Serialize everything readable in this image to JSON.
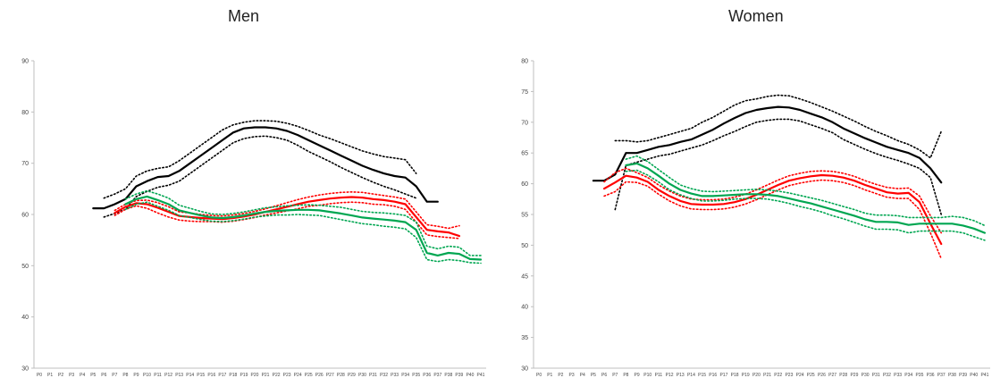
{
  "chart_data": [
    {
      "type": "line",
      "title": "Men",
      "xlabel": "",
      "ylabel": "",
      "ylim": [
        30,
        90
      ],
      "yticks": [
        30,
        40,
        50,
        60,
        70,
        80,
        90
      ],
      "categories": [
        "P0",
        "P1",
        "P2",
        "P3",
        "P4",
        "P5",
        "P6",
        "P7",
        "P8",
        "P9",
        "P10",
        "P11",
        "P12",
        "P13",
        "P14",
        "P15",
        "P16",
        "P17",
        "P18",
        "P19",
        "P20",
        "P21",
        "P22",
        "P23",
        "P24",
        "P25",
        "P26",
        "P27",
        "P28",
        "P29",
        "P30",
        "P31",
        "P32",
        "P33",
        "P34",
        "P35",
        "P36",
        "P37",
        "P38",
        "P39",
        "P40",
        "P41"
      ],
      "series": [
        {
          "color": "#000000",
          "style": "solid",
          "values": [
            null,
            null,
            null,
            null,
            null,
            61.2,
            61.2,
            62.0,
            63.0,
            65.5,
            66.5,
            67.3,
            67.5,
            68.5,
            70.0,
            71.5,
            73.0,
            74.5,
            76.0,
            76.8,
            77.0,
            77.0,
            76.8,
            76.3,
            75.5,
            74.5,
            73.5,
            72.5,
            71.5,
            70.5,
            69.5,
            68.7,
            68.0,
            67.5,
            67.2,
            65.5,
            62.5,
            62.5,
            null,
            null,
            null,
            null
          ]
        },
        {
          "color": "#000000",
          "style": "dotted",
          "values": [
            null,
            null,
            null,
            null,
            null,
            null,
            63.2,
            64.0,
            65.0,
            67.5,
            68.5,
            69.0,
            69.3,
            70.5,
            72.0,
            73.5,
            75.0,
            76.5,
            77.5,
            78.0,
            78.3,
            78.3,
            78.2,
            77.8,
            77.2,
            76.4,
            75.5,
            74.8,
            74.0,
            73.2,
            72.4,
            71.8,
            71.3,
            71.0,
            70.7,
            68.0,
            null,
            null,
            null,
            null,
            null,
            null
          ]
        },
        {
          "color": "#000000",
          "style": "dotted",
          "values": [
            null,
            null,
            null,
            null,
            null,
            null,
            59.5,
            60.2,
            61.0,
            63.5,
            64.5,
            65.3,
            65.7,
            66.5,
            68.0,
            69.5,
            71.0,
            72.5,
            74.0,
            74.8,
            75.2,
            75.3,
            75.0,
            74.5,
            73.5,
            72.3,
            71.3,
            70.3,
            69.2,
            68.2,
            67.2,
            66.3,
            65.5,
            64.8,
            64.0,
            63.2,
            null,
            null,
            null,
            null,
            null,
            null
          ]
        },
        {
          "color": "#ff0000",
          "style": "solid",
          "values": [
            null,
            null,
            null,
            null,
            null,
            null,
            null,
            60.3,
            61.5,
            62.2,
            62.0,
            61.3,
            60.5,
            59.7,
            59.5,
            59.3,
            59.2,
            59.1,
            59.3,
            59.6,
            60.0,
            60.5,
            61.0,
            61.5,
            62.0,
            62.5,
            62.8,
            63.1,
            63.3,
            63.4,
            63.3,
            63.0,
            62.8,
            62.5,
            62.0,
            59.5,
            57.0,
            56.7,
            56.5,
            55.8,
            null,
            null
          ]
        },
        {
          "color": "#ff0000",
          "style": "dotted",
          "values": [
            null,
            null,
            null,
            null,
            null,
            null,
            null,
            60.8,
            62.0,
            62.7,
            62.8,
            62.3,
            61.5,
            60.5,
            60.3,
            60.0,
            59.8,
            59.7,
            59.9,
            60.2,
            60.6,
            61.1,
            61.7,
            62.3,
            62.9,
            63.4,
            63.8,
            64.1,
            64.3,
            64.4,
            64.3,
            64.0,
            63.7,
            63.4,
            63.0,
            60.5,
            58.0,
            57.7,
            57.3,
            57.8,
            null,
            null
          ]
        },
        {
          "color": "#ff0000",
          "style": "dotted",
          "values": [
            null,
            null,
            null,
            null,
            null,
            null,
            null,
            59.8,
            61.0,
            61.7,
            61.2,
            60.3,
            59.5,
            58.9,
            58.7,
            58.6,
            58.6,
            58.5,
            58.7,
            59.0,
            59.4,
            59.9,
            60.3,
            60.7,
            61.1,
            61.6,
            61.8,
            62.1,
            62.3,
            62.4,
            62.3,
            62.0,
            61.9,
            61.6,
            61.0,
            58.5,
            56.0,
            55.7,
            55.5,
            55.3,
            null,
            null
          ]
        },
        {
          "color": "#00a651",
          "style": "solid",
          "values": [
            null,
            null,
            null,
            null,
            null,
            null,
            null,
            null,
            62.0,
            63.0,
            63.5,
            62.8,
            62.0,
            60.8,
            60.3,
            59.8,
            59.4,
            59.3,
            59.5,
            59.8,
            60.2,
            60.5,
            60.7,
            60.8,
            60.9,
            60.9,
            60.8,
            60.5,
            60.2,
            59.8,
            59.4,
            59.2,
            59.0,
            58.8,
            58.5,
            57.0,
            52.5,
            52.0,
            52.5,
            52.3,
            51.3,
            51.2
          ]
        },
        {
          "color": "#00a651",
          "style": "dotted",
          "values": [
            null,
            null,
            null,
            null,
            null,
            null,
            null,
            null,
            63.0,
            64.0,
            64.6,
            64.0,
            63.2,
            61.8,
            61.2,
            60.6,
            60.1,
            60.0,
            60.2,
            60.5,
            60.9,
            61.3,
            61.5,
            61.7,
            61.8,
            61.9,
            61.8,
            61.6,
            61.4,
            61.0,
            60.6,
            60.4,
            60.3,
            60.1,
            59.8,
            58.5,
            53.8,
            53.3,
            53.8,
            53.6,
            52.0,
            52.0
          ]
        },
        {
          "color": "#00a651",
          "style": "dotted",
          "values": [
            null,
            null,
            null,
            null,
            null,
            null,
            null,
            null,
            61.0,
            62.0,
            62.4,
            61.6,
            60.8,
            59.8,
            59.4,
            59.0,
            58.7,
            58.6,
            58.8,
            59.1,
            59.5,
            59.7,
            59.9,
            59.9,
            60.0,
            59.9,
            59.8,
            59.4,
            59.0,
            58.6,
            58.2,
            58.0,
            57.7,
            57.5,
            57.2,
            55.5,
            51.2,
            50.8,
            51.2,
            51.0,
            50.6,
            50.5
          ]
        }
      ]
    },
    {
      "type": "line",
      "title": "Women",
      "xlabel": "",
      "ylabel": "",
      "ylim": [
        30,
        80
      ],
      "yticks": [
        30,
        35,
        40,
        45,
        50,
        55,
        60,
        65,
        70,
        75,
        80
      ],
      "categories": [
        "P0",
        "P1",
        "P2",
        "P3",
        "P4",
        "P5",
        "P6",
        "P7",
        "P8",
        "P9",
        "P10",
        "P11",
        "P12",
        "P13",
        "P14",
        "P15",
        "P16",
        "P17",
        "P18",
        "P19",
        "P20",
        "P21",
        "P22",
        "P23",
        "P24",
        "P25",
        "P26",
        "P27",
        "P28",
        "P29",
        "P30",
        "P31",
        "P32",
        "P33",
        "P34",
        "P35",
        "P36",
        "P37",
        "P38",
        "P39",
        "P40",
        "P41"
      ],
      "series": [
        {
          "color": "#000000",
          "style": "solid",
          "values": [
            null,
            null,
            null,
            null,
            null,
            60.5,
            60.5,
            61.5,
            65.0,
            65.0,
            65.5,
            66.0,
            66.3,
            66.8,
            67.2,
            68.0,
            68.8,
            69.8,
            70.7,
            71.5,
            72.0,
            72.3,
            72.5,
            72.4,
            72.0,
            71.4,
            70.8,
            70.0,
            69.0,
            68.2,
            67.4,
            66.7,
            66.0,
            65.5,
            65.0,
            64.2,
            62.5,
            60.2,
            null,
            null,
            null,
            null
          ]
        },
        {
          "color": "#000000",
          "style": "dotted",
          "values": [
            null,
            null,
            null,
            null,
            null,
            null,
            null,
            67.0,
            67.0,
            66.8,
            67.0,
            67.5,
            68.0,
            68.5,
            69.0,
            70.0,
            70.8,
            71.8,
            72.8,
            73.5,
            73.8,
            74.2,
            74.4,
            74.3,
            73.8,
            73.2,
            72.5,
            71.8,
            71.0,
            70.2,
            69.3,
            68.5,
            67.8,
            67.0,
            66.4,
            65.5,
            64.2,
            68.5,
            null,
            null,
            null,
            null
          ]
        },
        {
          "color": "#000000",
          "style": "dotted",
          "values": [
            null,
            null,
            null,
            null,
            null,
            null,
            null,
            55.8,
            63.0,
            63.5,
            64.0,
            64.5,
            64.8,
            65.3,
            65.8,
            66.3,
            67.0,
            67.8,
            68.5,
            69.3,
            70.0,
            70.3,
            70.5,
            70.5,
            70.2,
            69.6,
            69.0,
            68.3,
            67.2,
            66.4,
            65.6,
            64.9,
            64.3,
            63.8,
            63.2,
            62.5,
            61.0,
            55.0,
            null,
            null,
            null,
            null
          ]
        },
        {
          "color": "#ff0000",
          "style": "solid",
          "values": [
            null,
            null,
            null,
            null,
            null,
            null,
            59.2,
            60.2,
            61.3,
            61.0,
            60.3,
            59.0,
            58.0,
            57.2,
            56.7,
            56.6,
            56.6,
            56.7,
            57.0,
            57.5,
            58.2,
            59.0,
            59.8,
            60.5,
            60.9,
            61.2,
            61.4,
            61.3,
            61.0,
            60.5,
            59.8,
            59.2,
            58.6,
            58.4,
            58.5,
            57.0,
            53.5,
            50.2,
            null,
            null,
            null,
            null
          ]
        },
        {
          "color": "#ff0000",
          "style": "dotted",
          "values": [
            null,
            null,
            null,
            null,
            null,
            null,
            60.3,
            61.8,
            62.5,
            61.8,
            61.0,
            59.8,
            58.8,
            58.0,
            57.5,
            57.4,
            57.4,
            57.5,
            57.8,
            58.3,
            59.0,
            59.8,
            60.6,
            61.3,
            61.7,
            62.0,
            62.1,
            62.0,
            61.7,
            61.2,
            60.5,
            59.9,
            59.4,
            59.2,
            59.3,
            58.0,
            54.8,
            52.0,
            null,
            null,
            null,
            null
          ]
        },
        {
          "color": "#ff0000",
          "style": "dotted",
          "values": [
            null,
            null,
            null,
            null,
            null,
            null,
            58.0,
            58.7,
            60.3,
            60.2,
            59.6,
            58.3,
            57.2,
            56.4,
            55.9,
            55.8,
            55.8,
            55.9,
            56.2,
            56.7,
            57.4,
            58.2,
            59.0,
            59.7,
            60.1,
            60.4,
            60.6,
            60.5,
            60.2,
            59.7,
            59.0,
            58.4,
            57.8,
            57.6,
            57.6,
            55.8,
            52.0,
            47.8,
            null,
            null,
            null,
            null
          ]
        },
        {
          "color": "#00a651",
          "style": "solid",
          "values": [
            null,
            null,
            null,
            null,
            null,
            null,
            null,
            null,
            63.0,
            63.3,
            62.5,
            61.3,
            60.0,
            59.0,
            58.4,
            58.0,
            58.0,
            58.1,
            58.2,
            58.3,
            58.3,
            58.2,
            58.0,
            57.6,
            57.2,
            56.8,
            56.3,
            55.8,
            55.3,
            54.8,
            54.2,
            53.8,
            53.8,
            53.7,
            53.3,
            53.5,
            53.5,
            53.5,
            53.5,
            53.2,
            52.7,
            52.0
          ]
        },
        {
          "color": "#00a651",
          "style": "dotted",
          "values": [
            null,
            null,
            null,
            null,
            null,
            null,
            null,
            null,
            64.0,
            64.5,
            63.6,
            62.3,
            61.0,
            59.8,
            59.2,
            58.8,
            58.7,
            58.8,
            58.9,
            59.0,
            59.1,
            59.0,
            58.8,
            58.5,
            58.1,
            57.7,
            57.3,
            56.8,
            56.3,
            55.8,
            55.2,
            54.9,
            54.9,
            54.8,
            54.5,
            54.5,
            54.5,
            54.5,
            54.7,
            54.5,
            54.0,
            53.2
          ]
        },
        {
          "color": "#00a651",
          "style": "dotted",
          "values": [
            null,
            null,
            null,
            null,
            null,
            null,
            null,
            null,
            62.0,
            62.2,
            61.4,
            60.3,
            59.0,
            58.2,
            57.6,
            57.2,
            57.2,
            57.3,
            57.5,
            57.6,
            57.6,
            57.5,
            57.2,
            56.8,
            56.3,
            55.9,
            55.4,
            54.8,
            54.3,
            53.7,
            53.1,
            52.6,
            52.6,
            52.5,
            52.0,
            52.3,
            52.3,
            52.3,
            52.3,
            52.0,
            51.4,
            50.8
          ]
        }
      ]
    }
  ]
}
